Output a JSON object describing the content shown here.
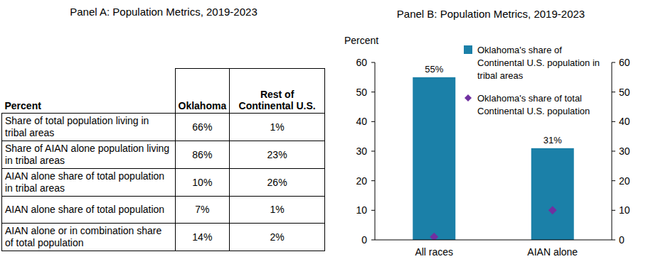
{
  "panel_a": {
    "title": "Panel A: Population Metrics, 2019-2023",
    "table": {
      "header": [
        "Percent",
        "Oklahoma",
        "Rest of Continental U.S."
      ],
      "rows": [
        [
          "Share of total population living in tribal areas",
          "66%",
          "1%"
        ],
        [
          "Share of AIAN alone population living in tribal areas",
          "86%",
          "23%"
        ],
        [
          "AIAN alone share of total population in tribal areas",
          "10%",
          "26%"
        ],
        [
          "AIAN alone share of total population",
          "7%",
          "1%"
        ],
        [
          "AIAN alone or in combination share of total population",
          "14%",
          "2%"
        ]
      ]
    }
  },
  "chart_data": {
    "type": "bar",
    "title": "Panel B: Population Metrics, 2019-2023",
    "y_label": "Percent",
    "categories": [
      "All races",
      "AIAN alone"
    ],
    "series": [
      {
        "name": "Oklahoma's share of Continental U.S. population in tribal areas",
        "type": "bar",
        "color": "#1b80a8",
        "values": [
          55,
          31
        ],
        "value_labels": [
          "55%",
          "31%"
        ]
      },
      {
        "name": "Oklahoma's share of total Continental U.S. population",
        "type": "scatter",
        "marker": "diamond",
        "color": "#7030a0",
        "values": [
          1,
          10
        ]
      }
    ],
    "ylim": [
      0,
      60
    ],
    "yticks": [
      0,
      10,
      20,
      30,
      40,
      50,
      60
    ],
    "y2lim": [
      0,
      60
    ],
    "y2ticks": [
      0,
      10,
      20,
      30,
      40,
      50,
      60
    ],
    "data_labels": true,
    "legend": "upper right",
    "grid": false
  }
}
